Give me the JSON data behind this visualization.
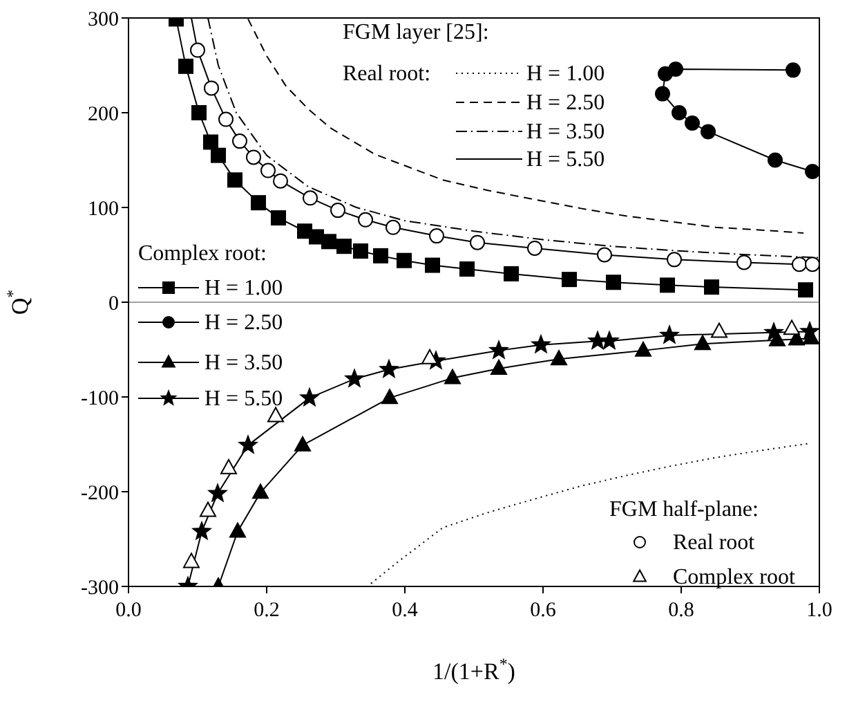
{
  "chart_data": {
    "type": "line",
    "xlabel": "1/(1+R$^{*}$)",
    "ylabel": "Q$^{*}$",
    "legend_title": "FGM layer [25]:",
    "annotations": [
      "Real root:",
      "Complex root:",
      "FGM half-plane:"
    ],
    "xlim": [
      0,
      1
    ],
    "xticks": [
      {
        "value": 0,
        "label": "0.0"
      },
      0.2,
      0.4,
      0.6,
      0.8,
      {
        "value": 1,
        "label": "1.0"
      }
    ],
    "ylim": [
      -300,
      300
    ],
    "yticks": [
      -300,
      -200,
      -100,
      0,
      100,
      200,
      300
    ],
    "grid": false,
    "legend": "bottom left",
    "ref_lines": [
      {
        "axis": "y",
        "value": 0,
        "label": null,
        "color": "#a0a0a0",
        "line_style": "solid"
      }
    ],
    "series": [
      {
        "name": "H = 1.00",
        "color": "#000000",
        "line_style": "dotted",
        "marker": "none",
        "x": [
          0.351,
          0.39,
          0.455,
          0.52,
          0.591,
          0.655,
          0.72,
          0.785,
          0.85,
          0.92,
          0.986
        ],
        "values": [
          -297,
          -274,
          -238,
          -222,
          -207,
          -194,
          -183,
          -173,
          -164,
          -156,
          -149
        ]
      },
      {
        "name": "H = 2.50",
        "color": "#000000",
        "line_style": "dashed",
        "marker": "none",
        "x": [
          0.173,
          0.2,
          0.228,
          0.26,
          0.292,
          0.357,
          0.455,
          0.52,
          0.591,
          0.655,
          0.72,
          0.785,
          0.85,
          0.92,
          0.977
        ],
        "values": [
          299,
          260,
          228,
          204,
          184,
          156,
          129,
          118,
          108,
          99,
          91,
          85,
          79,
          76,
          73
        ]
      },
      {
        "name": "H = 3.50",
        "color": "#000000",
        "line_style": "dashdot",
        "marker": "none",
        "x": [
          0.115,
          0.13,
          0.156,
          0.2,
          0.26,
          0.33,
          0.4,
          0.5,
          0.6,
          0.7,
          0.8,
          0.9,
          1.0
        ],
        "values": [
          300,
          250,
          200,
          155,
          122,
          100,
          86,
          75,
          66,
          59,
          54,
          50,
          47
        ]
      },
      {
        "name": "H = 5.50",
        "color": "#000000",
        "line_style": "solid",
        "marker": "none",
        "x": [
          0.091,
          0.1,
          0.12,
          0.141,
          0.161,
          0.181,
          0.202,
          0.22,
          0.263,
          0.303,
          0.343,
          0.383,
          0.446,
          0.505,
          0.588,
          0.689,
          0.79,
          0.891,
          0.971,
          0.99
        ],
        "values": [
          300,
          266,
          226,
          193,
          170,
          153,
          139,
          128,
          110,
          97,
          87,
          79,
          70,
          63,
          57,
          50,
          45,
          42,
          40,
          40
        ]
      },
      {
        "name": "H = 1.00",
        "color": "#000000",
        "line_style": "solid",
        "marker": "square",
        "x": [
          0.069,
          0.083,
          0.102,
          0.119,
          0.13,
          0.154,
          0.188,
          0.217,
          0.255,
          0.272,
          0.29,
          0.312,
          0.336,
          0.365,
          0.399,
          0.44,
          0.49,
          0.554,
          0.638,
          0.702,
          0.78,
          0.844,
          0.98
        ],
        "values": [
          299,
          249,
          200,
          169,
          155,
          129,
          105,
          89,
          75,
          69,
          64,
          59,
          54,
          49,
          44,
          39,
          35,
          30,
          24,
          21,
          18,
          16,
          13
        ]
      },
      {
        "name": "H = 2.50",
        "color": "#000000",
        "line_style": "solid",
        "marker": "circle",
        "x": [
          0.99,
          0.936,
          0.839,
          0.816,
          0.797,
          0.773,
          0.777,
          0.792,
          0.962
        ],
        "values": [
          138,
          150,
          180,
          189,
          200,
          220,
          241,
          246,
          245
        ]
      },
      {
        "name": "H = 3.50",
        "color": "#000000",
        "line_style": "solid",
        "marker": "triangle",
        "x": [
          0.13,
          0.158,
          0.191,
          0.252,
          0.378,
          0.469,
          0.536,
          0.623,
          0.745,
          0.831,
          0.939,
          0.967,
          0.988
        ],
        "values": [
          -300,
          -242,
          -201,
          -151,
          -101,
          -80,
          -70,
          -60,
          -51,
          -44,
          -40,
          -39,
          -38
        ]
      },
      {
        "name": "H = 5.50",
        "color": "#000000",
        "line_style": "solid",
        "marker": "star",
        "x": [
          0.086,
          0.106,
          0.129,
          0.173,
          0.262,
          0.327,
          0.377,
          0.445,
          0.536,
          0.597,
          0.679,
          0.696,
          0.783,
          0.934,
          0.986
        ],
        "values": [
          -300,
          -242,
          -202,
          -151,
          -101,
          -81,
          -71,
          -62,
          -51,
          -45,
          -41,
          -41,
          -35,
          -32,
          -31
        ]
      },
      {
        "name": "Real root",
        "type": "scatter",
        "color": "#000000",
        "marker": "circle",
        "x": [
          0.1,
          0.12,
          0.141,
          0.161,
          0.181,
          0.202,
          0.22,
          0.263,
          0.303,
          0.343,
          0.383,
          0.446,
          0.505,
          0.588,
          0.689,
          0.79,
          0.891,
          0.971,
          0.99
        ],
        "values": [
          266,
          226,
          193,
          170,
          153,
          139,
          128,
          110,
          97,
          87,
          79,
          70,
          63,
          57,
          50,
          45,
          42,
          40,
          40
        ]
      },
      {
        "name": "Complex root",
        "type": "scatter",
        "color": "#000000",
        "marker": "triangle",
        "x": [
          0.091,
          0.115,
          0.145,
          0.213,
          0.436,
          0.855,
          0.96
        ],
        "values": [
          -274,
          -220,
          -175,
          -120,
          -59,
          -31,
          -28
        ]
      }
    ]
  }
}
